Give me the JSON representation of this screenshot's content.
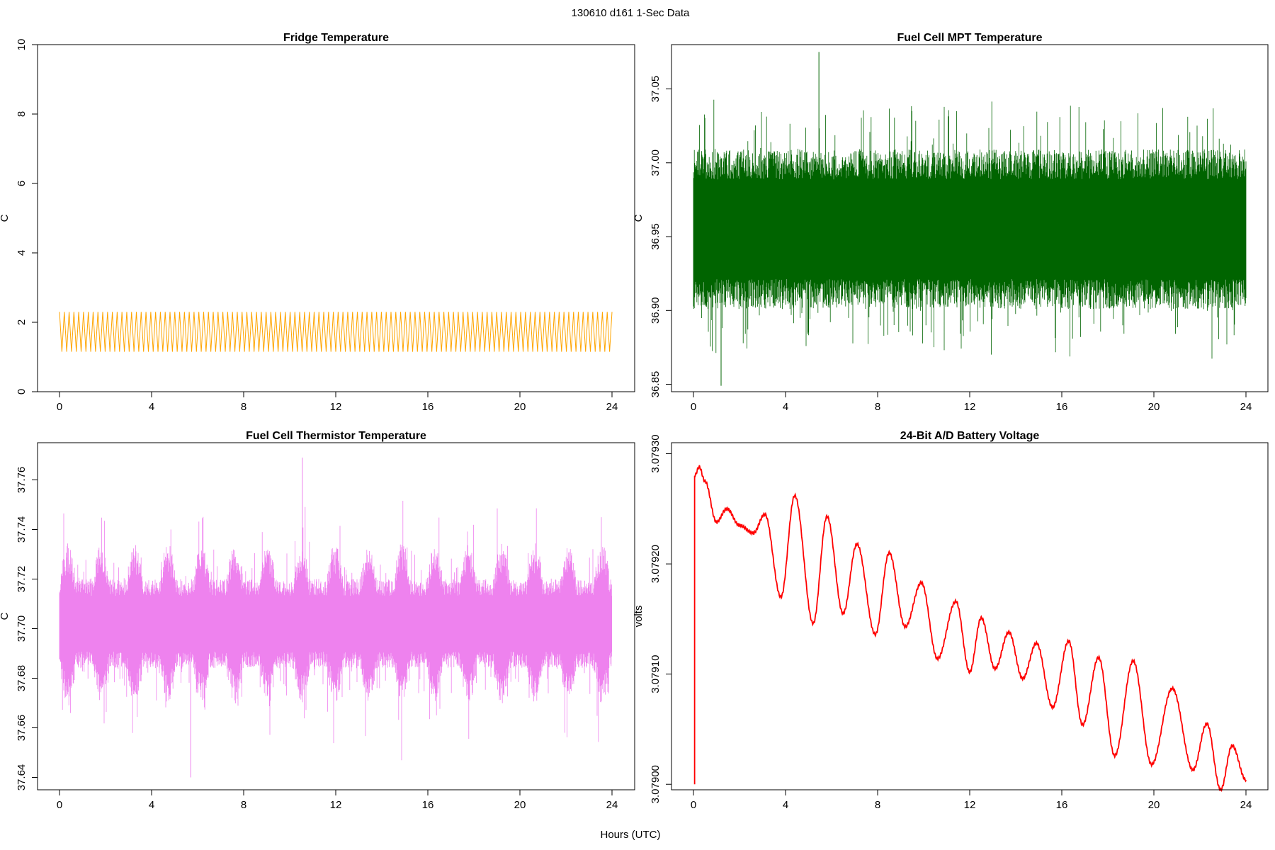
{
  "figure": {
    "title": "130610   d161   1-Sec Data",
    "xlabel": "Hours (UTC)"
  },
  "chart_data": [
    {
      "type": "line",
      "title": "Fridge Temperature",
      "ylabel": "C",
      "xlabel": "",
      "color": "#FFA500",
      "xlim": [
        0,
        24
      ],
      "ylim": [
        0,
        10
      ],
      "x_ticks": [
        0,
        4,
        8,
        12,
        16,
        20,
        24
      ],
      "y_ticks": [
        0,
        2,
        4,
        6,
        8,
        10
      ],
      "y_tick_labels": [
        "0",
        "2",
        "4",
        "6",
        "8",
        "10"
      ],
      "signal": {
        "kind": "sawtooth",
        "x_start": 0,
        "x_end": 24,
        "low": 1.15,
        "high": 2.3,
        "cycles": 115
      }
    },
    {
      "type": "line",
      "title": "Fuel Cell MPT Temperature",
      "ylabel": "C",
      "xlabel": "",
      "color": "#006400",
      "xlim": [
        0,
        24
      ],
      "ylim": [
        36.845,
        37.08
      ],
      "x_ticks": [
        0,
        4,
        8,
        12,
        16,
        20,
        24
      ],
      "y_ticks": [
        36.85,
        36.9,
        36.95,
        37.0,
        37.05
      ],
      "y_tick_labels": [
        "36.85",
        "36.90",
        "36.95",
        "37.00",
        "37.05"
      ],
      "signal": {
        "kind": "noise-band",
        "x_start": 0,
        "x_end": 24,
        "center": 36.955,
        "core_half_width": 0.045,
        "peak_max": 37.075,
        "peak_min": 36.849,
        "seed": 7
      }
    },
    {
      "type": "line",
      "title": "Fuel Cell Thermistor Temperature",
      "ylabel": "C",
      "xlabel": "",
      "color": "#EE82EE",
      "xlim": [
        0,
        24
      ],
      "ylim": [
        37.635,
        37.775
      ],
      "x_ticks": [
        0,
        4,
        8,
        12,
        16,
        20,
        24
      ],
      "y_ticks": [
        37.64,
        37.66,
        37.68,
        37.7,
        37.72,
        37.74,
        37.76
      ],
      "y_tick_labels": [
        "37.64",
        "37.66",
        "37.68",
        "37.70",
        "37.72",
        "37.74",
        "37.76"
      ],
      "signal": {
        "kind": "modulated-noise",
        "x_start": 0,
        "x_end": 24,
        "center": 37.702,
        "base_half_width": 0.015,
        "mod_amplitude": 0.012,
        "mod_period_hours": 1.45,
        "peak_max": 37.769,
        "peak_min": 37.64,
        "seed": 13
      }
    },
    {
      "type": "line",
      "title": "24-Bit A/D Battery Voltage",
      "ylabel": "volts",
      "xlabel": "",
      "color": "#FF0000",
      "xlim": [
        0,
        24
      ],
      "ylim": [
        3.078995,
        3.07931
      ],
      "x_ticks": [
        0,
        4,
        8,
        12,
        16,
        20,
        24
      ],
      "y_ticks": [
        3.079,
        3.0791,
        3.0792,
        3.0793
      ],
      "y_tick_labels": [
        "3.07900",
        "3.07910",
        "3.07920",
        "3.07930"
      ],
      "signal": {
        "kind": "keypoints",
        "start_value": 3.079,
        "points": [
          [
            0.05,
            3.07928
          ],
          [
            0.25,
            3.079288
          ],
          [
            0.5,
            3.079275
          ],
          [
            1.0,
            3.079238
          ],
          [
            1.45,
            3.07925
          ],
          [
            2.0,
            3.079235
          ],
          [
            2.6,
            3.079228
          ],
          [
            3.1,
            3.079245
          ],
          [
            3.8,
            3.07917
          ],
          [
            4.4,
            3.079262
          ],
          [
            5.2,
            3.079146
          ],
          [
            5.8,
            3.079243
          ],
          [
            6.5,
            3.079155
          ],
          [
            7.1,
            3.079218
          ],
          [
            7.9,
            3.079136
          ],
          [
            8.5,
            3.07921
          ],
          [
            9.2,
            3.079143
          ],
          [
            9.9,
            3.079183
          ],
          [
            10.6,
            3.079114
          ],
          [
            11.4,
            3.079166
          ],
          [
            12.0,
            3.079102
          ],
          [
            12.5,
            3.079151
          ],
          [
            13.1,
            3.079105
          ],
          [
            13.7,
            3.079138
          ],
          [
            14.3,
            3.079096
          ],
          [
            14.9,
            3.079128
          ],
          [
            15.6,
            3.07907
          ],
          [
            16.3,
            3.07913
          ],
          [
            16.9,
            3.079054
          ],
          [
            17.6,
            3.079115
          ],
          [
            18.3,
            3.079026
          ],
          [
            19.1,
            3.079112
          ],
          [
            19.9,
            3.079018
          ],
          [
            20.8,
            3.079087
          ],
          [
            21.7,
            3.079013
          ],
          [
            22.3,
            3.079055
          ],
          [
            22.9,
            3.078995
          ],
          [
            23.4,
            3.079035
          ],
          [
            24.0,
            3.079004
          ]
        ],
        "oscillation_amplitude": 1.2e-06,
        "oscillation_period_hours": 0.08
      }
    }
  ]
}
